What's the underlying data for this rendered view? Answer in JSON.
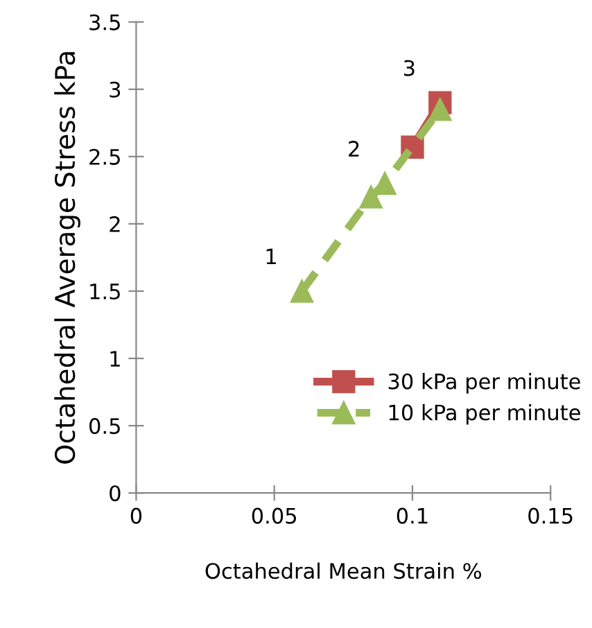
{
  "chart_data": {
    "type": "line",
    "xlabel": "Octahedral Mean Strain %",
    "ylabel": "Octahedral Average Stress kPa",
    "series": [
      {
        "name": "30 kPa per minute",
        "color": "#c0504d",
        "x": [
          0.1,
          0.11
        ],
        "values": [
          2.57,
          2.9
        ],
        "marker": "square",
        "line_style": "solid"
      },
      {
        "name": "10 kPa per minute",
        "color": "#9bbb59",
        "x": [
          0.06,
          0.085,
          0.09,
          0.11
        ],
        "values": [
          1.5,
          2.2,
          2.3,
          2.85
        ],
        "marker": "triangle",
        "line_style": "dashed"
      }
    ],
    "xlim": [
      0,
      0.15
    ],
    "xticks": [
      0,
      0.05,
      0.1,
      0.15
    ],
    "ylim": [
      0,
      3.5
    ],
    "yticks": [
      0,
      0.5,
      1,
      1.5,
      2,
      2.5,
      3,
      3.5
    ],
    "annotations": [
      {
        "text": "1",
        "x": 0.06,
        "y": 1.5
      },
      {
        "text": "2",
        "x": 0.09,
        "y": 2.3
      },
      {
        "text": "3",
        "x": 0.11,
        "y": 2.9
      }
    ],
    "legend": "right",
    "grid": false
  }
}
